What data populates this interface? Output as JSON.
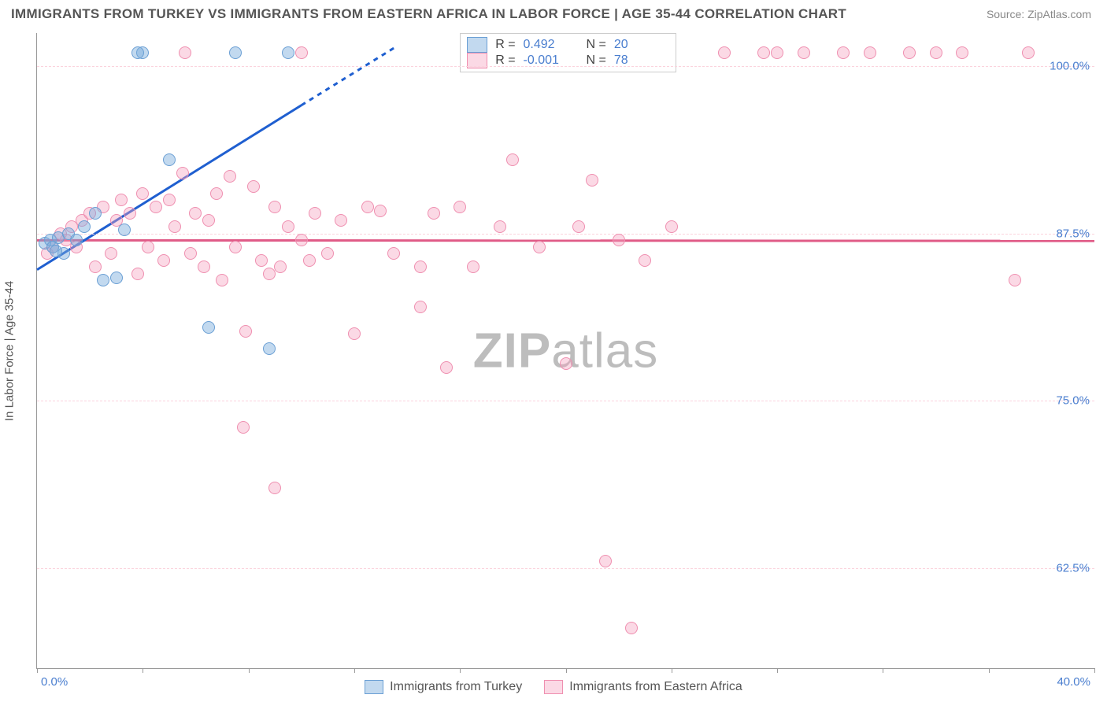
{
  "title": "IMMIGRANTS FROM TURKEY VS IMMIGRANTS FROM EASTERN AFRICA IN LABOR FORCE | AGE 35-44 CORRELATION CHART",
  "source": "Source: ZipAtlas.com",
  "watermark_bold": "ZIP",
  "watermark_rest": "atlas",
  "chart": {
    "type": "scatter",
    "y_axis_title": "In Labor Force | Age 35-44",
    "xlim": [
      0,
      40
    ],
    "ylim": [
      55,
      102.5
    ],
    "x_min_label": "0.0%",
    "x_max_label": "40.0%",
    "yticks": [
      {
        "v": 62.5,
        "label": "62.5%"
      },
      {
        "v": 75.0,
        "label": "75.0%"
      },
      {
        "v": 87.5,
        "label": "87.5%"
      },
      {
        "v": 100.0,
        "label": "100.0%"
      }
    ],
    "xticks": [
      0,
      4,
      8,
      12,
      16,
      20,
      24,
      28,
      32,
      36,
      40
    ],
    "background_color": "#ffffff",
    "grid_color": "#fbd3dd",
    "marker_radius": 8,
    "series": [
      {
        "id": "turkey",
        "label": "Immigrants from Turkey",
        "fill": "rgba(120,170,220,0.45)",
        "stroke": "#6a9fd4",
        "r_value": "0.492",
        "n_value": "20",
        "trend": {
          "color": "#1f5fd0",
          "solid_from_x": 0,
          "solid_to_x": 10,
          "dash_to_x": 13.6,
          "y_at_x0": 84.8,
          "y_at_x10": 97.1,
          "y_at_dash_end": 101.5
        }
      },
      {
        "id": "eastern_africa",
        "label": "Immigrants from Eastern Africa",
        "fill": "rgba(245,160,190,0.40)",
        "stroke": "#ef8fb0",
        "r_value": "-0.001",
        "n_value": "78",
        "trend": {
          "color": "#e05b87",
          "solid_from_x": 0,
          "solid_to_x": 40,
          "y_at_x0": 87.0,
          "y_at_xend": 86.95
        }
      }
    ],
    "points": {
      "turkey": [
        [
          0.3,
          86.8
        ],
        [
          0.5,
          87.0
        ],
        [
          0.6,
          86.5
        ],
        [
          0.8,
          87.2
        ],
        [
          1.0,
          86.0
        ],
        [
          1.2,
          87.5
        ],
        [
          1.5,
          87.0
        ],
        [
          1.8,
          88.0
        ],
        [
          2.2,
          89.0
        ],
        [
          2.5,
          84.0
        ],
        [
          3.0,
          84.2
        ],
        [
          3.3,
          87.8
        ],
        [
          4.0,
          101.0
        ],
        [
          5.0,
          93.0
        ],
        [
          6.5,
          80.5
        ],
        [
          7.5,
          101.0
        ],
        [
          8.8,
          78.9
        ],
        [
          9.5,
          101.0
        ],
        [
          3.8,
          101.0
        ],
        [
          0.7,
          86.2
        ]
      ],
      "eastern_africa": [
        [
          0.4,
          86.0
        ],
        [
          0.6,
          86.5
        ],
        [
          0.9,
          87.5
        ],
        [
          1.1,
          87.0
        ],
        [
          1.3,
          88.0
        ],
        [
          1.5,
          86.5
        ],
        [
          1.7,
          88.5
        ],
        [
          2.0,
          89.0
        ],
        [
          2.2,
          85.0
        ],
        [
          2.5,
          89.5
        ],
        [
          2.8,
          86.0
        ],
        [
          3.0,
          88.5
        ],
        [
          3.2,
          90.0
        ],
        [
          3.5,
          89.0
        ],
        [
          3.8,
          84.5
        ],
        [
          4.0,
          90.5
        ],
        [
          4.2,
          86.5
        ],
        [
          4.5,
          89.5
        ],
        [
          4.8,
          85.5
        ],
        [
          5.0,
          90.0
        ],
        [
          5.2,
          88.0
        ],
        [
          5.5,
          92.0
        ],
        [
          5.8,
          86.0
        ],
        [
          6.0,
          89.0
        ],
        [
          6.3,
          85.0
        ],
        [
          6.5,
          88.5
        ],
        [
          6.8,
          90.5
        ],
        [
          7.0,
          84.0
        ],
        [
          7.3,
          91.8
        ],
        [
          7.5,
          86.5
        ],
        [
          7.8,
          73.0
        ],
        [
          7.9,
          80.2
        ],
        [
          8.2,
          91.0
        ],
        [
          8.5,
          85.5
        ],
        [
          8.8,
          84.5
        ],
        [
          9.0,
          89.5
        ],
        [
          9.0,
          68.5
        ],
        [
          9.2,
          85.0
        ],
        [
          9.5,
          88.0
        ],
        [
          10.0,
          101.0
        ],
        [
          10.0,
          87.0
        ],
        [
          10.3,
          85.5
        ],
        [
          10.5,
          89.0
        ],
        [
          11.0,
          86.0
        ],
        [
          11.5,
          88.5
        ],
        [
          12.0,
          80.0
        ],
        [
          12.5,
          89.5
        ],
        [
          13.0,
          89.2
        ],
        [
          13.5,
          86.0
        ],
        [
          14.5,
          85.0
        ],
        [
          14.5,
          82.0
        ],
        [
          15.0,
          89.0
        ],
        [
          15.5,
          77.5
        ],
        [
          16.0,
          89.5
        ],
        [
          16.5,
          85.0
        ],
        [
          17.5,
          88.0
        ],
        [
          18.0,
          93.0
        ],
        [
          19.0,
          86.5
        ],
        [
          20.0,
          77.8
        ],
        [
          20.5,
          88.0
        ],
        [
          21.0,
          91.5
        ],
        [
          21.5,
          63.0
        ],
        [
          22.0,
          87.0
        ],
        [
          22.5,
          58.0
        ],
        [
          26.0,
          101.0
        ],
        [
          27.5,
          101.0
        ],
        [
          28.0,
          101.0
        ],
        [
          29.0,
          101.0
        ],
        [
          30.5,
          101.0
        ],
        [
          31.5,
          101.0
        ],
        [
          33.0,
          101.0
        ],
        [
          34.0,
          101.0
        ],
        [
          37.0,
          84.0
        ],
        [
          35.0,
          101.0
        ],
        [
          37.5,
          101.0
        ],
        [
          24.0,
          88.0
        ],
        [
          23.0,
          85.5
        ],
        [
          5.6,
          101.0
        ]
      ]
    }
  },
  "legend_text": {
    "r_prefix": "R =",
    "n_prefix": "N ="
  }
}
